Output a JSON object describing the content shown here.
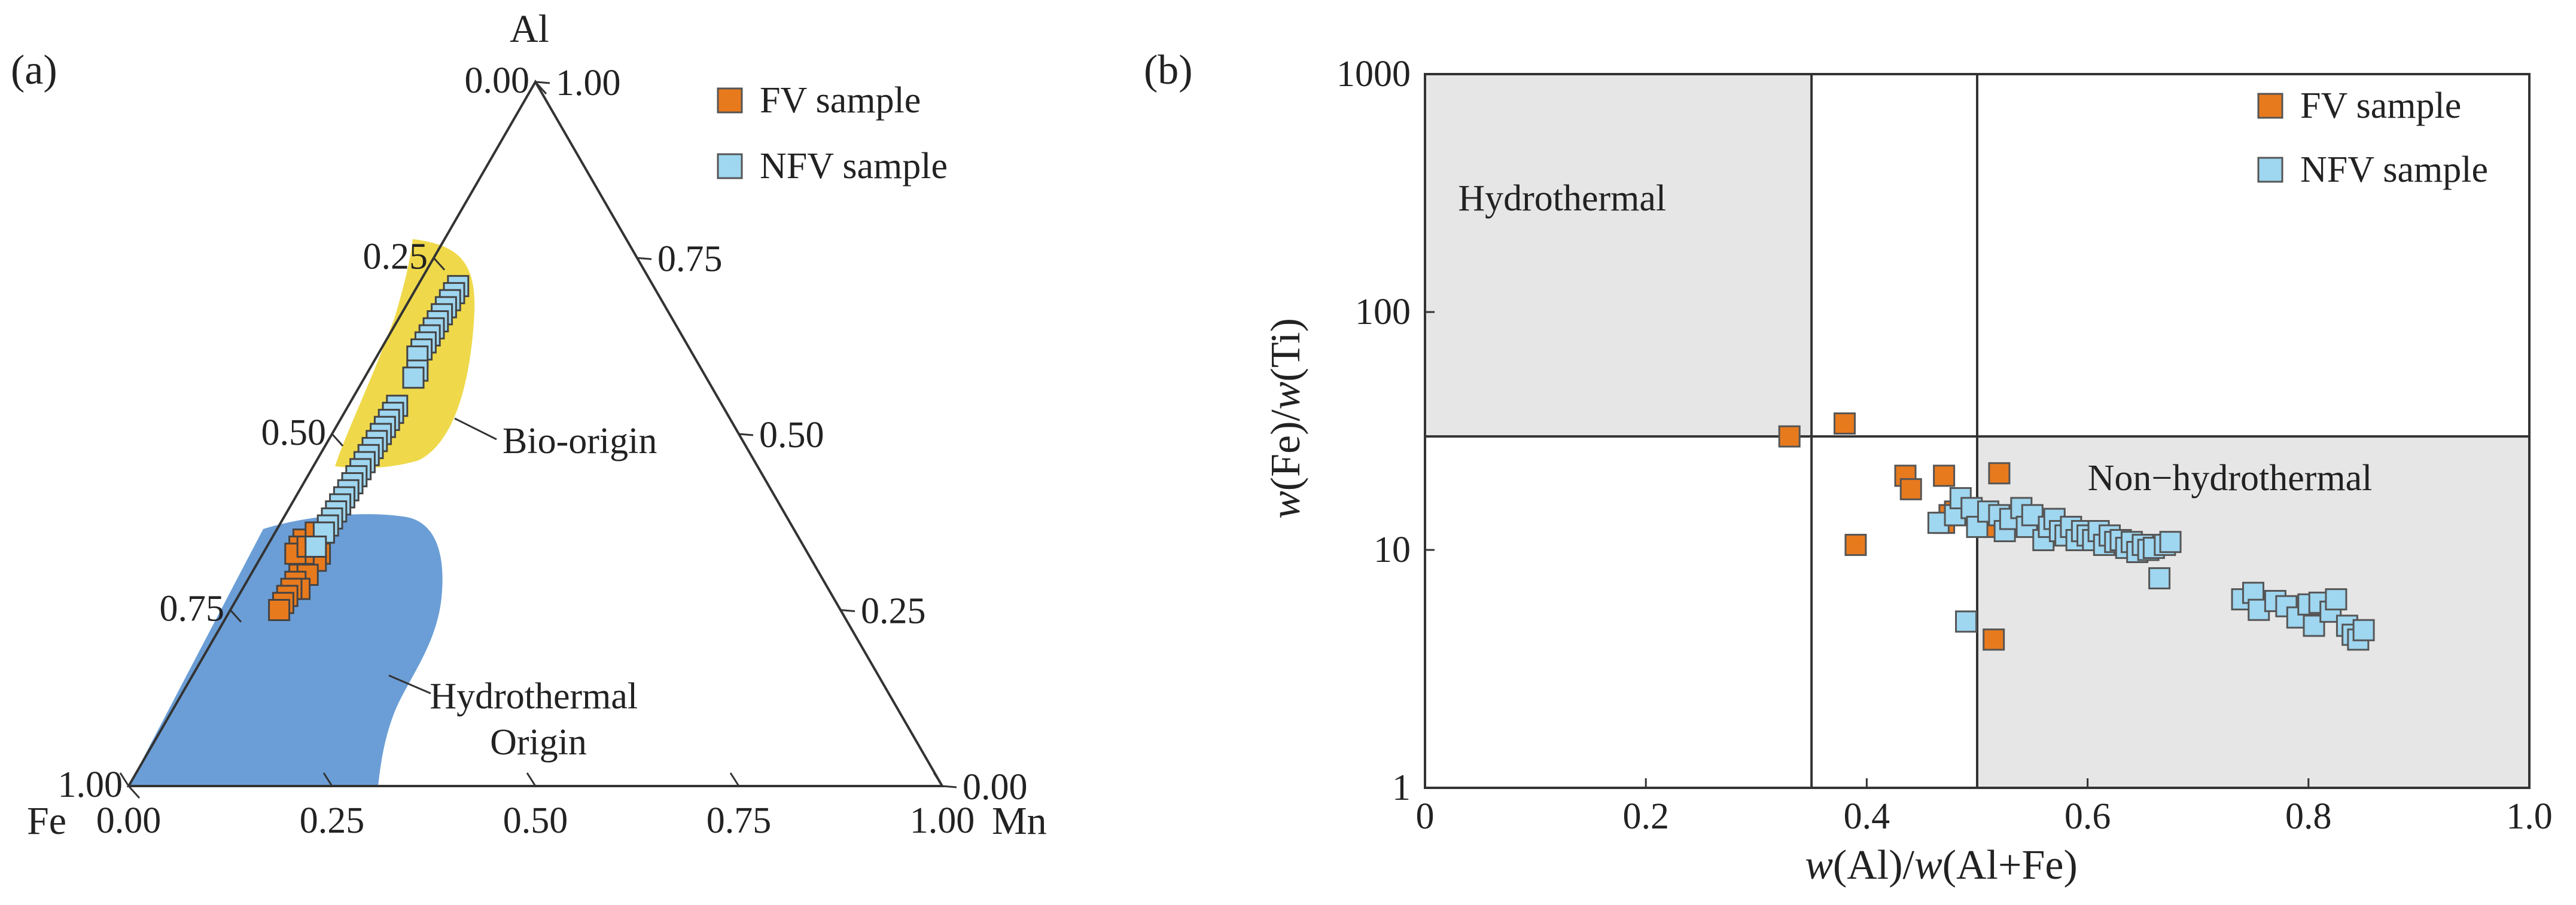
{
  "colors": {
    "fv": "#E87A1E",
    "nfv": "#9FD6F0",
    "bio_region": "#EFD94B",
    "hydro_region": "#6B9ED6",
    "shaded_field": "#E6E6E6",
    "line": "#333333"
  },
  "chart_data": [
    {
      "type": "scatter",
      "subtype": "ternary",
      "panel_label": "(a)",
      "vertices": {
        "top": "Al",
        "left": "Fe",
        "right": "Mn"
      },
      "left_edge_ticks": [
        "0.00",
        "0.25",
        "0.50",
        "0.75",
        "1.00"
      ],
      "right_edge_ticks": [
        "1.00",
        "0.75",
        "0.50",
        "0.25",
        "0.00"
      ],
      "bottom_edge_ticks": [
        "0.00",
        "0.25",
        "0.50",
        "0.75",
        "1.00"
      ],
      "left_edge_values": [
        0,
        0.25,
        0.5,
        0.75,
        1.0
      ],
      "right_edge_values": [
        1.0,
        0.75,
        0.5,
        0.25,
        0
      ],
      "bottom_edge_values": [
        0,
        0.25,
        0.5,
        0.75,
        1.0
      ],
      "regions": [
        {
          "label": "Bio-origin",
          "color": "#EFD94B"
        },
        {
          "label": "Hydrothermal\nOrigin",
          "color": "#6B9ED6"
        }
      ],
      "legend": {
        "position": "top-right",
        "entries": [
          "FV sample",
          "NFV sample"
        ]
      },
      "series": [
        {
          "name": "FV sample",
          "color": "#E87A1E",
          "points_fe_mn_al": [
            [
              0.62,
              0.06,
              0.32
            ],
            [
              0.6,
              0.07,
              0.33
            ],
            [
              0.61,
              0.07,
              0.32
            ],
            [
              0.64,
              0.06,
              0.3
            ],
            [
              0.63,
              0.07,
              0.3
            ],
            [
              0.65,
              0.06,
              0.29
            ],
            [
              0.65,
              0.07,
              0.28
            ],
            [
              0.66,
              0.06,
              0.28
            ],
            [
              0.67,
              0.06,
              0.27
            ],
            [
              0.68,
              0.06,
              0.26
            ],
            [
              0.69,
              0.06,
              0.25
            ],
            [
              0.62,
              0.05,
              0.33
            ],
            [
              0.58,
              0.06,
              0.36
            ],
            [
              0.6,
              0.06,
              0.34
            ],
            [
              0.61,
              0.04,
              0.35
            ],
            [
              0.62,
              0.04,
              0.34
            ],
            [
              0.63,
              0.04,
              0.33
            ],
            [
              0.61,
              0.05,
              0.34
            ],
            [
              0.59,
              0.05,
              0.36
            ]
          ]
        },
        {
          "name": "NFV sample",
          "color": "#9FD6F0",
          "points_fe_mn_al": [
            [
              0.24,
              0.05,
              0.71
            ],
            [
              0.25,
              0.05,
              0.7
            ],
            [
              0.26,
              0.05,
              0.69
            ],
            [
              0.27,
              0.05,
              0.68
            ],
            [
              0.28,
              0.05,
              0.67
            ],
            [
              0.29,
              0.05,
              0.66
            ],
            [
              0.3,
              0.05,
              0.65
            ],
            [
              0.31,
              0.05,
              0.64
            ],
            [
              0.32,
              0.05,
              0.63
            ],
            [
              0.33,
              0.05,
              0.62
            ],
            [
              0.34,
              0.05,
              0.61
            ],
            [
              0.35,
              0.06,
              0.59
            ],
            [
              0.36,
              0.06,
              0.58
            ],
            [
              0.4,
              0.06,
              0.54
            ],
            [
              0.41,
              0.06,
              0.53
            ],
            [
              0.42,
              0.06,
              0.52
            ],
            [
              0.43,
              0.06,
              0.51
            ],
            [
              0.44,
              0.06,
              0.5
            ],
            [
              0.45,
              0.06,
              0.49
            ],
            [
              0.46,
              0.06,
              0.48
            ],
            [
              0.47,
              0.06,
              0.47
            ],
            [
              0.48,
              0.06,
              0.46
            ],
            [
              0.49,
              0.06,
              0.45
            ],
            [
              0.5,
              0.06,
              0.44
            ],
            [
              0.51,
              0.06,
              0.43
            ],
            [
              0.52,
              0.06,
              0.42
            ],
            [
              0.53,
              0.06,
              0.41
            ],
            [
              0.54,
              0.06,
              0.4
            ],
            [
              0.55,
              0.06,
              0.39
            ],
            [
              0.56,
              0.06,
              0.38
            ],
            [
              0.57,
              0.06,
              0.37
            ],
            [
              0.58,
              0.06,
              0.36
            ],
            [
              0.6,
              0.06,
              0.34
            ]
          ]
        }
      ]
    },
    {
      "type": "scatter",
      "panel_label": "(b)",
      "xlabel": "w(Al)/w(Al+Fe)",
      "ylabel": "w(Fe)/w(Ti)",
      "xlim": [
        0,
        1.0
      ],
      "ylim": [
        1,
        1000
      ],
      "yscale": "log",
      "x_ticks": [
        "0",
        "0.2",
        "0.4",
        "0.6",
        "0.8",
        "1.0"
      ],
      "y_ticks": [
        "1",
        "10",
        "100",
        "1000"
      ],
      "x_tick_values": [
        0,
        0.2,
        0.4,
        0.6,
        0.8,
        1.0
      ],
      "y_tick_values": [
        1,
        10,
        100,
        1000
      ],
      "divider_lines": {
        "x": [
          0.35,
          0.5
        ],
        "y": [
          30
        ]
      },
      "fields": [
        {
          "label": "Hydrothermal",
          "x_range": [
            0,
            0.35
          ],
          "y_range": [
            30,
            1000
          ],
          "color": "#E6E6E6"
        },
        {
          "label": "Non−hydrothermal",
          "x_range": [
            0.5,
            1.0
          ],
          "y_range": [
            1,
            30
          ],
          "color": "#E6E6E6"
        }
      ],
      "legend": {
        "position": "top-right",
        "entries": [
          "FV sample",
          "NFV sample"
        ]
      },
      "series": [
        {
          "name": "FV sample",
          "color": "#E87A1E",
          "points": [
            [
              0.33,
              30
            ],
            [
              0.38,
              34
            ],
            [
              0.39,
              10.5
            ],
            [
              0.435,
              20.5
            ],
            [
              0.44,
              18
            ],
            [
              0.47,
              20.5
            ],
            [
              0.47,
              13
            ],
            [
              0.475,
              14
            ],
            [
              0.48,
              14.5
            ],
            [
              0.49,
              14
            ],
            [
              0.515,
              12.5
            ],
            [
              0.52,
              21
            ],
            [
              0.57,
              13
            ],
            [
              0.515,
              4.2
            ]
          ]
        },
        {
          "name": "NFV sample",
          "color": "#9FD6F0",
          "points": [
            [
              0.465,
              13
            ],
            [
              0.48,
              14
            ],
            [
              0.485,
              16.5
            ],
            [
              0.49,
              5
            ],
            [
              0.495,
              15
            ],
            [
              0.5,
              12.5
            ],
            [
              0.51,
              14.5
            ],
            [
              0.52,
              14
            ],
            [
              0.525,
              12
            ],
            [
              0.53,
              13.5
            ],
            [
              0.54,
              15
            ],
            [
              0.545,
              12.5
            ],
            [
              0.55,
              14
            ],
            [
              0.56,
              11
            ],
            [
              0.565,
              12.5
            ],
            [
              0.57,
              13.5
            ],
            [
              0.575,
              12
            ],
            [
              0.58,
              11.5
            ],
            [
              0.585,
              12.5
            ],
            [
              0.59,
              11
            ],
            [
              0.595,
              12
            ],
            [
              0.6,
              11.5
            ],
            [
              0.605,
              11
            ],
            [
              0.61,
              12
            ],
            [
              0.615,
              10.5
            ],
            [
              0.62,
              11.5
            ],
            [
              0.625,
              10.8
            ],
            [
              0.63,
              11
            ],
            [
              0.635,
              10.2
            ],
            [
              0.64,
              10.8
            ],
            [
              0.645,
              9.8
            ],
            [
              0.65,
              10.5
            ],
            [
              0.655,
              10
            ],
            [
              0.66,
              10.2
            ],
            [
              0.665,
              7.6
            ],
            [
              0.67,
              10.5
            ],
            [
              0.675,
              10.8
            ],
            [
              0.74,
              6.2
            ],
            [
              0.75,
              6.6
            ],
            [
              0.755,
              5.6
            ],
            [
              0.77,
              6.1
            ],
            [
              0.78,
              5.8
            ],
            [
              0.79,
              5.2
            ],
            [
              0.8,
              5.9
            ],
            [
              0.805,
              4.8
            ],
            [
              0.81,
              6
            ],
            [
              0.82,
              5.5
            ],
            [
              0.825,
              6.2
            ],
            [
              0.835,
              4.8
            ],
            [
              0.84,
              4.4
            ],
            [
              0.845,
              4.2
            ],
            [
              0.85,
              4.6
            ]
          ]
        }
      ]
    }
  ]
}
